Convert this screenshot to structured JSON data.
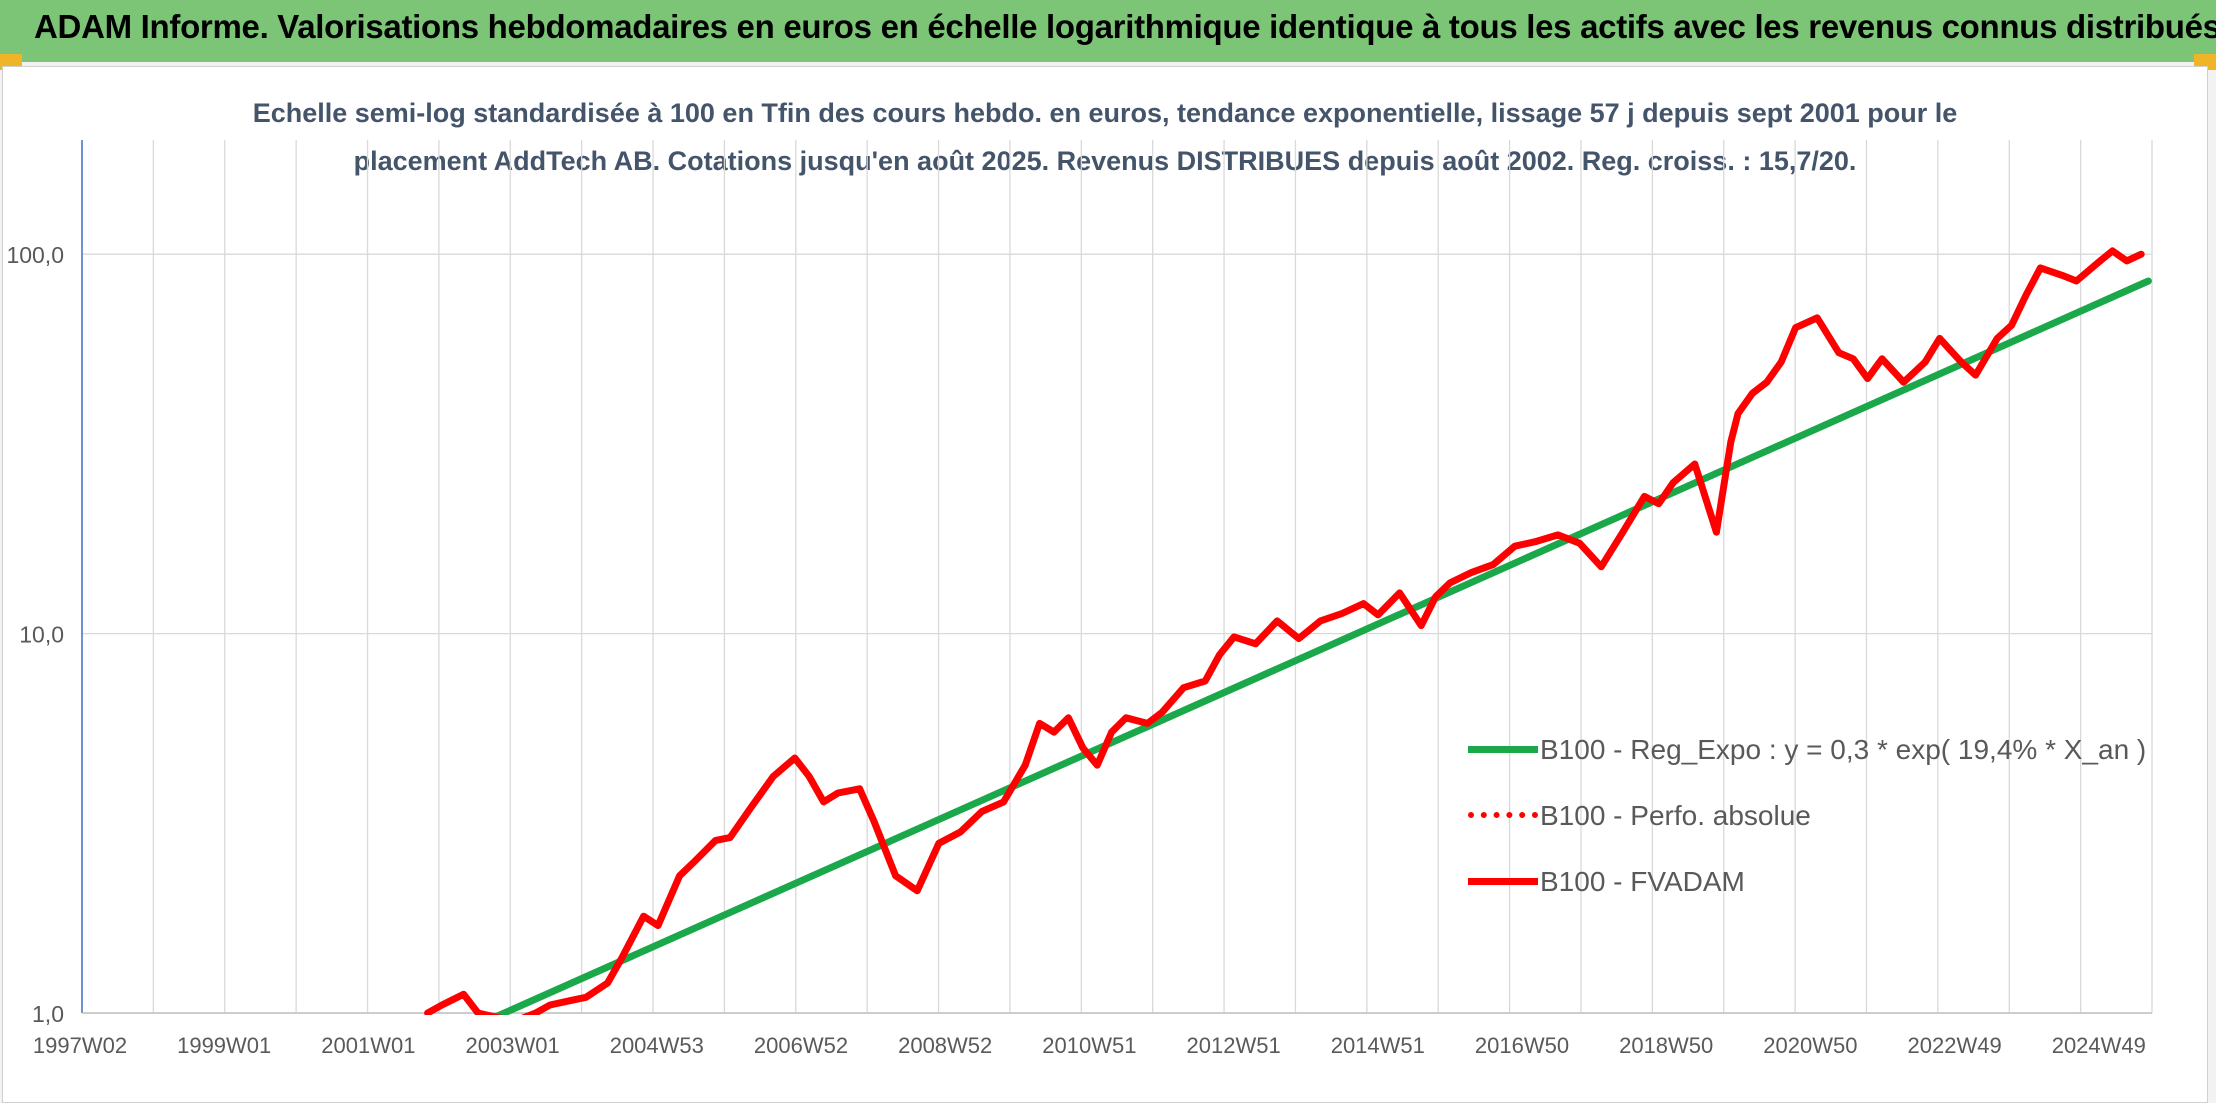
{
  "header": {
    "title": "ADAM Informe. Valorisations hebdomadaires en euros en échelle logarithmique identique à tous les actifs avec les revenus connus distribués"
  },
  "chart_data": {
    "type": "line",
    "title": "Echelle semi-log standardisée à 100 en Tfin des cours hebdo. en euros, tendance exponentielle, lissage 57 j depuis sept 2001 pour le placement AddTech AB. Cotations jusqu'en août 2025. Revenus DISTRIBUES depuis août 2002. Reg. croiss. : 15,7/20.",
    "title_lines": [
      "Echelle semi-log standardisée à 100 en Tfin des cours hebdo. en euros, tendance exponentielle, lissage 57 j depuis sept 2001 pour le",
      "placement AddTech AB. Cotations jusqu'en août 2025. Revenus DISTRIBUES depuis août 2002. Reg. croiss. : 15,7/20."
    ],
    "y_scale": "log",
    "ylim": [
      1,
      100
    ],
    "y_ticks": [
      "1,0",
      "10,0",
      "100,0"
    ],
    "xlim": [
      1997.0,
      2025.75
    ],
    "x_tick_labels": [
      "1997W02",
      "1999W01",
      "2001W01",
      "2003W01",
      "2004W53",
      "2006W52",
      "2008W52",
      "2010W51",
      "2012W51",
      "2014W51",
      "2016W50",
      "2018W50",
      "2020W50",
      "2022W49",
      "2024W49"
    ],
    "grid": true,
    "legend_position": "right",
    "series": [
      {
        "name": "B100 - Reg_Expo : y = 0,3 * exp( 19,4% *  X_an )",
        "color": "#1aa84a",
        "style": "solid",
        "x": [
          2002.6,
          2025.7
        ],
        "y": [
          0.95,
          85
        ]
      },
      {
        "name": "B100 - Perfo. absolue",
        "color": "#ff0000",
        "style": "dotted",
        "x": [],
        "y": []
      },
      {
        "name": "B100 - FVADAM",
        "color": "#ff0000",
        "style": "solid",
        "x": [
          2001.8,
          2002.0,
          2002.3,
          2002.5,
          2002.8,
          2003.0,
          2003.3,
          2003.5,
          2003.8,
          2004.0,
          2004.3,
          2004.5,
          2004.8,
          2005.0,
          2005.3,
          2005.5,
          2005.8,
          2006.0,
          2006.3,
          2006.6,
          2006.9,
          2007.1,
          2007.3,
          2007.5,
          2007.8,
          2008.0,
          2008.3,
          2008.6,
          2008.9,
          2009.2,
          2009.5,
          2009.8,
          2010.1,
          2010.3,
          2010.5,
          2010.7,
          2010.9,
          2011.1,
          2011.3,
          2011.5,
          2011.8,
          2012.0,
          2012.3,
          2012.6,
          2012.8,
          2013.0,
          2013.3,
          2013.6,
          2013.9,
          2014.2,
          2014.5,
          2014.8,
          2015.0,
          2015.3,
          2015.6,
          2015.8,
          2016.0,
          2016.3,
          2016.6,
          2016.9,
          2017.2,
          2017.5,
          2017.8,
          2018.1,
          2018.4,
          2018.7,
          2018.9,
          2019.1,
          2019.4,
          2019.7,
          2019.9,
          2020.0,
          2020.2,
          2020.4,
          2020.6,
          2020.8,
          2021.1,
          2021.4,
          2021.6,
          2021.8,
          2022.0,
          2022.3,
          2022.6,
          2022.8,
          2023.1,
          2023.3,
          2023.6,
          2023.8,
          2024.0,
          2024.2,
          2024.5,
          2024.7,
          2025.0,
          2025.2,
          2025.4,
          2025.6
        ],
        "y": [
          1.0,
          1.05,
          1.12,
          1.0,
          0.97,
          0.95,
          1.0,
          1.05,
          1.08,
          1.1,
          1.2,
          1.4,
          1.8,
          1.7,
          2.3,
          2.5,
          2.85,
          2.9,
          3.5,
          4.2,
          4.7,
          4.2,
          3.6,
          3.8,
          3.9,
          3.2,
          2.3,
          2.1,
          2.8,
          3.0,
          3.4,
          3.6,
          4.5,
          5.8,
          5.5,
          6.0,
          5.0,
          4.5,
          5.5,
          6.0,
          5.8,
          6.2,
          7.2,
          7.5,
          8.8,
          9.8,
          9.4,
          10.8,
          9.7,
          10.8,
          11.3,
          12.0,
          11.2,
          12.8,
          10.5,
          12.5,
          13.6,
          14.5,
          15.2,
          17.0,
          17.5,
          18.2,
          17.3,
          15.0,
          18.5,
          23.0,
          22.0,
          25.0,
          28.0,
          18.5,
          32.0,
          38.0,
          43.0,
          46.0,
          52.0,
          64.0,
          68.0,
          55.0,
          53.0,
          47.0,
          53.0,
          46.0,
          52.0,
          60.0,
          52.0,
          48.0,
          60.0,
          65.0,
          78.0,
          92.0,
          88.0,
          85.0,
          95.0,
          102.0,
          96.0,
          100.0
        ]
      }
    ]
  }
}
